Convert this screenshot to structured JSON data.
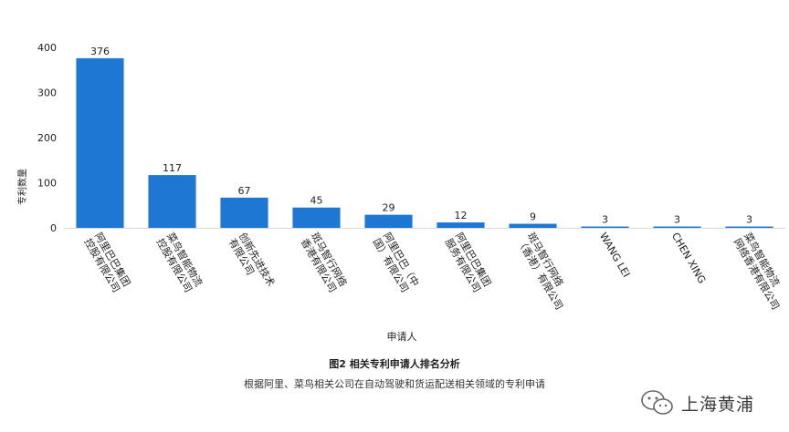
{
  "chart_data": {
    "type": "bar",
    "categories": [
      "阿里巴巴集团控股有限公司",
      "菜鸟智能物流控股有限公司",
      "创新先进技术有限公司",
      "斑马智行网络香港有限公司",
      "阿里巴巴（中国）有限公司",
      "阿里巴巴集团服务有限公司",
      "斑马智行网络（香港）有限公司",
      "WANG LEI",
      "CHEN XING",
      "菜鸟智能物流网络香港有限公司"
    ],
    "values": [
      376,
      117,
      67,
      45,
      29,
      12,
      9,
      3,
      3,
      3
    ],
    "ylim": [
      0,
      400
    ],
    "yticks": [
      0,
      100,
      200,
      300,
      400
    ],
    "xlabel": "申请人",
    "ylabel": "专利数量",
    "grid": false,
    "color": "#1f77d4"
  },
  "caption": {
    "title": "图2 相关专利申请人排名分析",
    "subtitle": "根据阿里、菜鸟相关公司在自动驾驶和货运配送相关领域的专利申请"
  },
  "watermark": {
    "icon": "wechat-icon",
    "text": "上海黄浦"
  }
}
